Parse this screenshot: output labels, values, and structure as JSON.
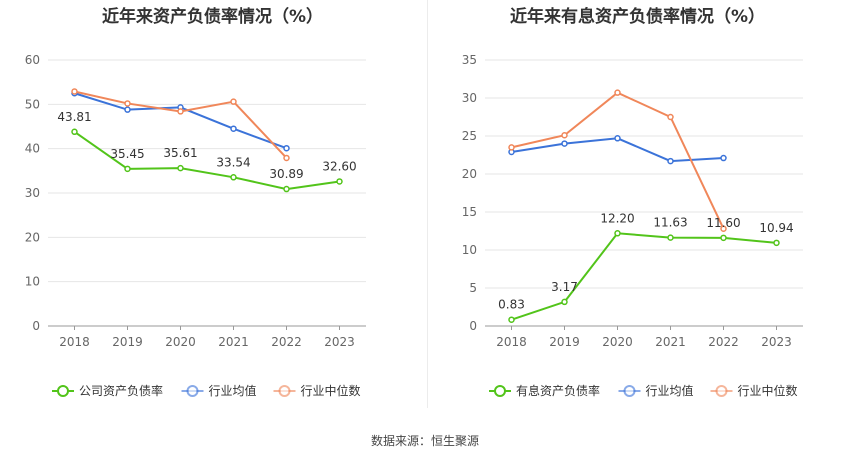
{
  "source_text": "数据来源：恒生聚源",
  "chart_data": [
    {
      "type": "line",
      "title": "近年来资产负债率情况（%）",
      "x": [
        "2018",
        "2019",
        "2020",
        "2021",
        "2022",
        "2023"
      ],
      "ylim": [
        0,
        60
      ],
      "yticks": [
        0,
        10,
        20,
        30,
        40,
        50,
        60
      ],
      "grid": true,
      "legend_position": "bottom",
      "series": [
        {
          "name": "公司资产负债率",
          "color": "#52c41a",
          "values": [
            43.81,
            35.45,
            35.61,
            33.54,
            30.89,
            32.6
          ],
          "labels": [
            "43.81",
            "35.45",
            "35.61",
            "33.54",
            "30.89",
            "32.60"
          ]
        },
        {
          "name": "行业均值",
          "color": "#3b73d9",
          "values": [
            52.5,
            48.8,
            49.3,
            44.5,
            40.1,
            null
          ]
        },
        {
          "name": "行业中位数",
          "color": "#f0875a",
          "values": [
            52.9,
            50.2,
            48.4,
            50.6,
            37.9,
            null
          ]
        }
      ]
    },
    {
      "type": "line",
      "title": "近年来有息资产负债率情况（%）",
      "x": [
        "2018",
        "2019",
        "2020",
        "2021",
        "2022",
        "2023"
      ],
      "ylim": [
        0,
        35
      ],
      "yticks": [
        0,
        5,
        10,
        15,
        20,
        25,
        30,
        35
      ],
      "grid": true,
      "legend_position": "bottom",
      "series": [
        {
          "name": "有息资产负债率",
          "color": "#52c41a",
          "values": [
            0.83,
            3.17,
            12.2,
            11.63,
            11.6,
            10.94
          ],
          "labels": [
            "0.83",
            "3.17",
            "12.20",
            "11.63",
            "11.60",
            "10.94"
          ]
        },
        {
          "name": "行业均值",
          "color": "#3b73d9",
          "values": [
            22.9,
            24.0,
            24.7,
            21.7,
            22.1,
            null
          ]
        },
        {
          "name": "行业中位数",
          "color": "#f0875a",
          "values": [
            23.5,
            25.1,
            30.7,
            27.5,
            12.8,
            null
          ]
        }
      ]
    }
  ]
}
